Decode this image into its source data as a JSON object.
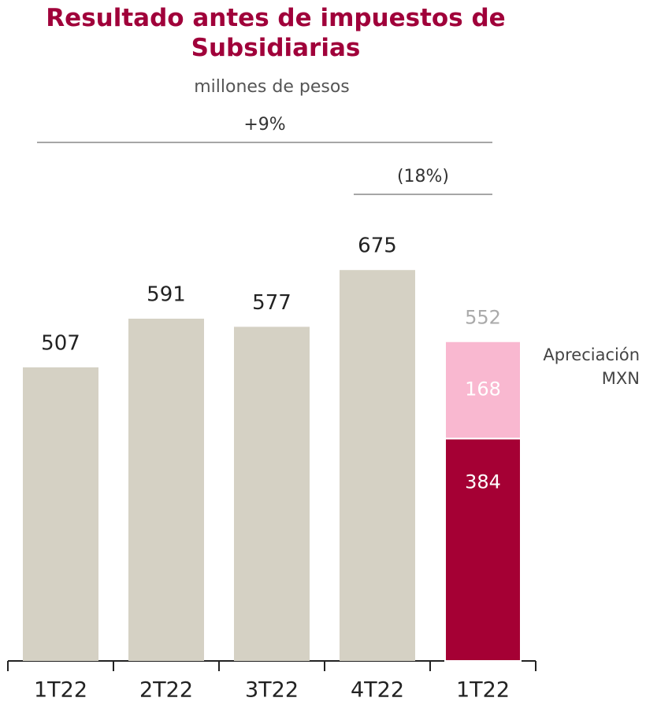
{
  "chart_data": {
    "type": "stacked_bar",
    "title": "Resultado antes de impuestos de Subsidiarias",
    "subtitle": "millones de pesos",
    "categories": [
      "1T22",
      "2T22",
      "3T22",
      "4T22",
      "1T22"
    ],
    "series": [
      {
        "color": "#d5d1c4",
        "highlight_color": "#a50034",
        "values": [
          507,
          591,
          577,
          675,
          384
        ]
      },
      {
        "name": "Apreciación MXN",
        "color": "#f9b8d0",
        "values": [
          null,
          null,
          null,
          null,
          168
        ]
      }
    ],
    "totals": [
      null,
      null,
      null,
      null,
      552
    ],
    "annotations": [
      {
        "text": "+9%",
        "from": 0,
        "to": 4
      },
      {
        "text": "(18%)",
        "from": 3,
        "to": 4
      }
    ],
    "ylim": [
      0,
      1000
    ]
  }
}
